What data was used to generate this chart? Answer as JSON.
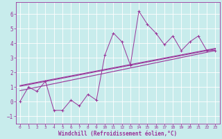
{
  "xlabel": "Windchill (Refroidissement éolien,°C)",
  "bg_color": "#c8ecec",
  "line_color": "#993399",
  "grid_color": "#b0d8d8",
  "xlim": [
    -0.5,
    23.5
  ],
  "ylim": [
    -1.5,
    6.8
  ],
  "yticks": [
    -1,
    0,
    1,
    2,
    3,
    4,
    5,
    6
  ],
  "xticks": [
    0,
    1,
    2,
    3,
    4,
    5,
    6,
    7,
    8,
    9,
    10,
    11,
    12,
    13,
    14,
    15,
    16,
    17,
    18,
    19,
    20,
    21,
    22,
    23
  ],
  "series1_x": [
    0,
    1,
    2,
    3,
    4,
    5,
    6,
    7,
    8,
    9,
    10,
    11,
    12,
    13,
    14,
    15,
    16,
    17,
    18,
    19,
    20,
    21,
    22,
    23
  ],
  "series1_y": [
    0.0,
    1.0,
    0.7,
    1.4,
    -0.6,
    -0.6,
    0.1,
    -0.3,
    0.5,
    0.1,
    3.2,
    4.7,
    4.1,
    2.5,
    6.2,
    5.3,
    4.7,
    3.9,
    4.5,
    3.5,
    4.1,
    4.5,
    3.5,
    3.5
  ],
  "trend1_x": [
    0,
    23
  ],
  "trend1_y": [
    1.05,
    3.6
  ],
  "trend2_x": [
    0,
    23
  ],
  "trend2_y": [
    0.75,
    3.5
  ],
  "trend3_x": [
    0,
    23
  ],
  "trend3_y": [
    1.1,
    3.65
  ]
}
